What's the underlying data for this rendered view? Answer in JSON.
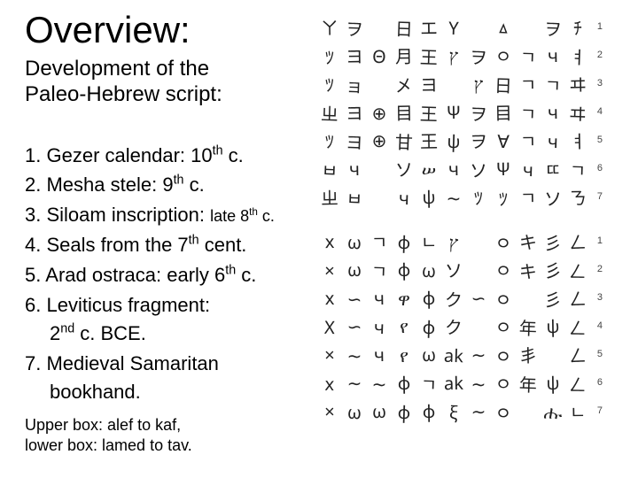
{
  "title": "Overview:",
  "subtitle_line1": "Development of the",
  "subtitle_line2": "Paleo-Hebrew script:",
  "items": [
    {
      "n": "1.",
      "text_a": "Gezer calendar: 10",
      "sup": "th",
      "text_b": " c."
    },
    {
      "n": "2.",
      "text_a": "Mesha stele: 9",
      "sup": "th",
      "text_b": " c."
    },
    {
      "n": "3.",
      "text_a": "Siloam inscription: ",
      "small": "late 8",
      "sup": "th",
      "text_b": " c."
    },
    {
      "n": "4.",
      "text_a": "Seals from the 7",
      "sup": "th",
      "text_b": " cent."
    },
    {
      "n": "5.",
      "text_a": "Arad ostraca: early 6",
      "sup": "th",
      "text_b": " c."
    },
    {
      "n": "6.",
      "text_a": "Leviticus fragment:",
      "cont_a": "2",
      "cont_sup": "nd",
      "cont_b": " c. BCE."
    },
    {
      "n": "7.",
      "text_a": "Medieval Samaritan",
      "cont_plain": "bookhand."
    }
  ],
  "caption_line1": "Upper box: alef to kaf,",
  "caption_line2": "lower box: lamed to tav.",
  "chart": {
    "upper": {
      "rows": 7,
      "cols": 11,
      "glyphs": [
        [
          "ㄚ",
          "ヲ",
          "",
          "日",
          "エ",
          "Y",
          "",
          "ㅿ",
          "",
          "ヲ",
          "ﾁ"
        ],
        [
          "ﾂ",
          "ヨ",
          "Θ",
          "月",
          "王",
          "ץ",
          "ヲ",
          "ㅇ",
          "ㄱ",
          "ч",
          "ㅕ"
        ],
        [
          "ﾂ",
          "ョ",
          "",
          "㐅",
          "ヨ",
          "",
          "ץ",
          "日",
          "ㄱ",
          "ㄱ",
          "ヰ"
        ],
        [
          "ㄓ",
          "ヨ",
          "⊕",
          "目",
          "王",
          "Ψ",
          "ヲ",
          "目",
          "ㄱ",
          "ч",
          "ヰ"
        ],
        [
          "ﾂ",
          "ヨ",
          "⊕",
          "甘",
          "王",
          "ψ",
          "ヲ",
          "∀",
          "ㄱ",
          "ч",
          "ㅕ"
        ],
        [
          "ㅂ",
          "ч",
          "",
          "ソ",
          "ሠ",
          "ч",
          "ソ",
          "Ψ",
          "ч",
          "ㄸ",
          "ㄱ"
        ],
        [
          "ㄓ",
          "ㅂ",
          "",
          "ч",
          "ψ",
          "∼",
          "ﾂ",
          "ﾂ",
          "ㄱ",
          "ソ",
          "ㄋ"
        ]
      ]
    },
    "lower": {
      "rows": 7,
      "cols": 11,
      "glyphs": [
        [
          "x",
          "ω",
          "ㄱ",
          "φ",
          "ㄴ",
          "ץ",
          "",
          "ㅇ",
          "キ",
          "彡",
          "ㄥ"
        ],
        [
          "×",
          "ω",
          "ㄱ",
          "φ",
          "ω",
          "ソ",
          "",
          "ㅇ",
          "キ",
          "彡",
          "ㄥ"
        ],
        [
          "x",
          "∽",
          "ч",
          "ዋ",
          "φ",
          "ク",
          "∽",
          "ㅇ",
          "",
          "彡",
          "ㄥ"
        ],
        [
          "X",
          "∽",
          "ч",
          "የ",
          "φ",
          "ク",
          "",
          "ㅇ",
          "年",
          "ψ",
          "ㄥ"
        ],
        [
          "×",
          "∼",
          "ч",
          "የ",
          "ω",
          "ak",
          "∼",
          "ㅇ",
          "丯",
          "",
          "ㄥ"
        ],
        [
          "x",
          "∼",
          "∼",
          "φ",
          "ㄱ",
          "ak",
          "∼",
          "ㅇ",
          "年",
          "ψ",
          "ㄥ"
        ],
        [
          "×",
          "ω",
          "ω",
          "φ",
          "φ",
          "ξ",
          "∼",
          "ㅇ",
          "",
          "ሑ",
          "ㄴ"
        ]
      ]
    }
  }
}
